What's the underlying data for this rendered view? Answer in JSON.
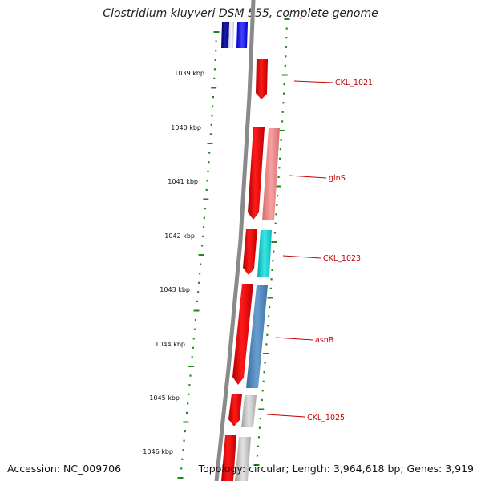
{
  "title": "Clostridium kluyveri DSM 555, complete genome",
  "footer": {
    "accession": "Accession: NC_009706",
    "summary": "Topology: circular; Length: 3,964,618 bp; Genes: 3,919"
  },
  "colors": {
    "backbone": "#8a8a8a",
    "tick": "#1a8a1a",
    "gene_label": "#c40000",
    "red": "#e60000",
    "pink": "#ec8080",
    "cyan": "#14c8c8",
    "steelblue": "#4f86b8",
    "gray": "#bcbcbc",
    "blue": "#1010ee",
    "navy": "#0a0a80"
  },
  "scale": {
    "unit": "kbp",
    "labels": [
      "1039 kbp",
      "1040 kbp",
      "1041 kbp",
      "1042 kbp",
      "1043 kbp",
      "1044 kbp",
      "1045 kbp",
      "1046 kbp"
    ]
  },
  "genes": [
    {
      "name": "CKL_1021"
    },
    {
      "name": "glnS"
    },
    {
      "name": "CKL_1023"
    },
    {
      "name": "asnB"
    },
    {
      "name": "CKL_1025"
    }
  ]
}
